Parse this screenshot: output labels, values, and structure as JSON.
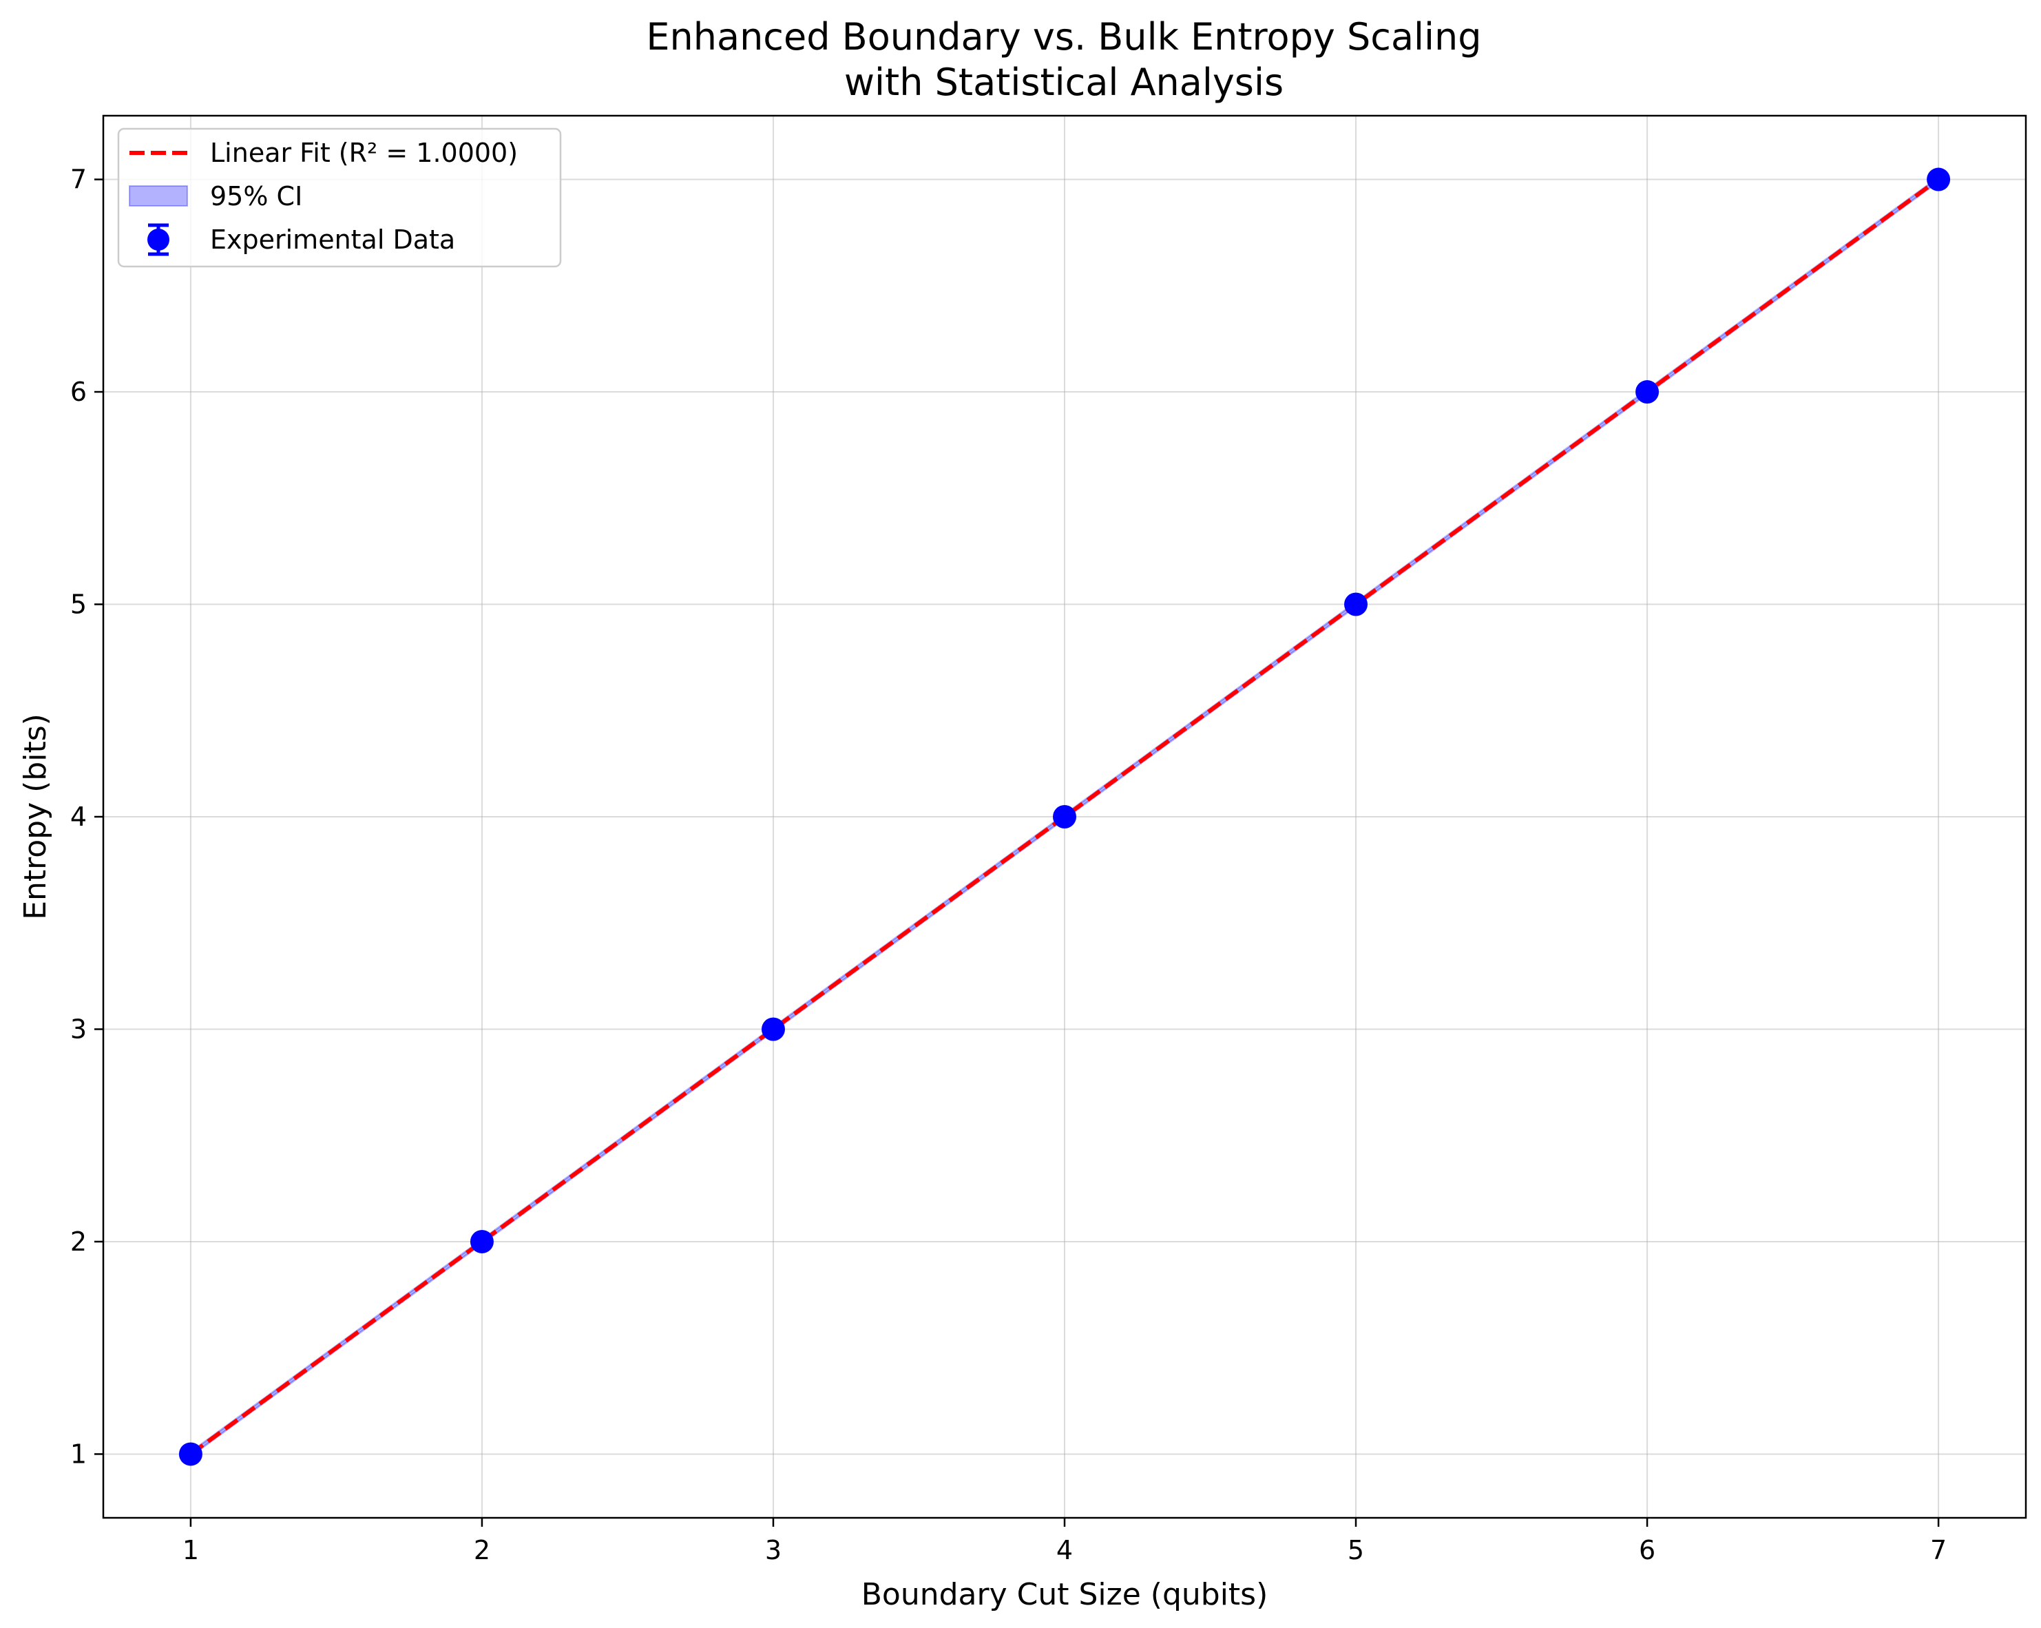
{
  "chart_data": {
    "type": "line",
    "title": "Enhanced Boundary vs. Bulk Entropy Scaling",
    "subtitle": "with Statistical Analysis",
    "xlabel": "Boundary Cut Size (qubits)",
    "ylabel": "Entropy (bits)",
    "xlim": [
      0.7,
      7.3
    ],
    "ylim": [
      0.7,
      7.3
    ],
    "x_ticks": [
      "1",
      "2",
      "3",
      "4",
      "5",
      "6",
      "7"
    ],
    "y_ticks": [
      "1",
      "2",
      "3",
      "4",
      "5",
      "6",
      "7"
    ],
    "grid": true,
    "legend_position": "upper-left",
    "series": [
      {
        "name": "Experimental Data",
        "kind": "errorbar-scatter",
        "color": "#0000ff",
        "x": [
          1,
          2,
          3,
          4,
          5,
          6,
          7
        ],
        "y": [
          1,
          2,
          3,
          4,
          5,
          6,
          7
        ]
      },
      {
        "name": "Linear Fit (R² = 1.0000)",
        "kind": "dashed-line",
        "color": "#ff0000",
        "x": [
          1,
          7
        ],
        "y": [
          1,
          7
        ]
      },
      {
        "name": "95% CI",
        "kind": "band",
        "color": "#0000ff",
        "opacity": 0.3,
        "x": [
          1,
          7
        ],
        "y_lower": [
          1,
          7
        ],
        "y_upper": [
          1,
          7
        ]
      }
    ],
    "legend_order": [
      "Linear Fit (R² = 1.0000)",
      "95% CI",
      "Experimental Data"
    ]
  }
}
